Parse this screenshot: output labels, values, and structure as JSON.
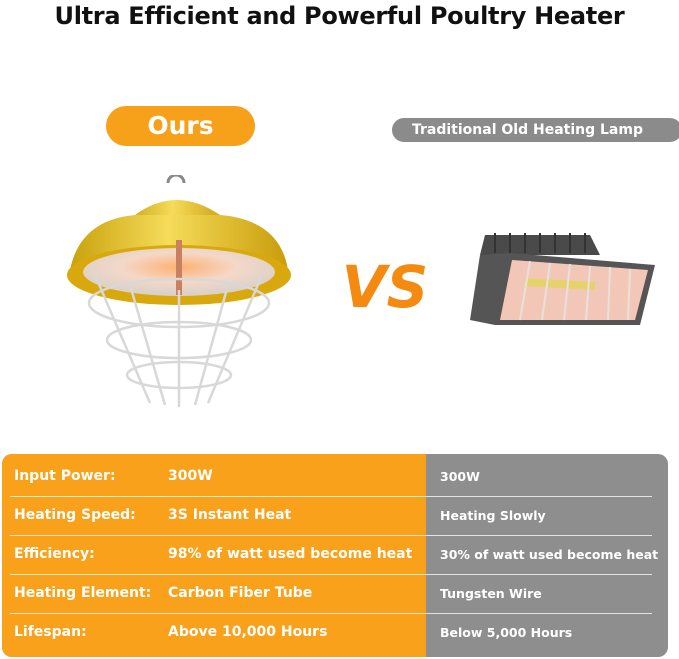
{
  "title": "Ultra Efficient and Powerful Poultry Heater",
  "badges": {
    "ours": "Ours",
    "traditional": "Traditional Old Heating Lamp"
  },
  "vs_text": "VS",
  "colors": {
    "accent": "#f9a11b",
    "gray": "#8e8e8e"
  },
  "comparison": {
    "rows": [
      {
        "label": "Input Power:",
        "ours": "300W",
        "traditional": "300W"
      },
      {
        "label": "Heating Speed:",
        "ours": "3S Instant Heat",
        "traditional": "Heating Slowly"
      },
      {
        "label": "Efficiency:",
        "ours": "98% of watt used become heat",
        "traditional": "30% of watt used become heat"
      },
      {
        "label": "Heating Element:",
        "ours": "Carbon Fiber Tube",
        "traditional": "Tungsten Wire"
      },
      {
        "label": "Lifespan:",
        "ours": "Above 10,000 Hours",
        "traditional": "Below 5,000 Hours"
      }
    ]
  }
}
